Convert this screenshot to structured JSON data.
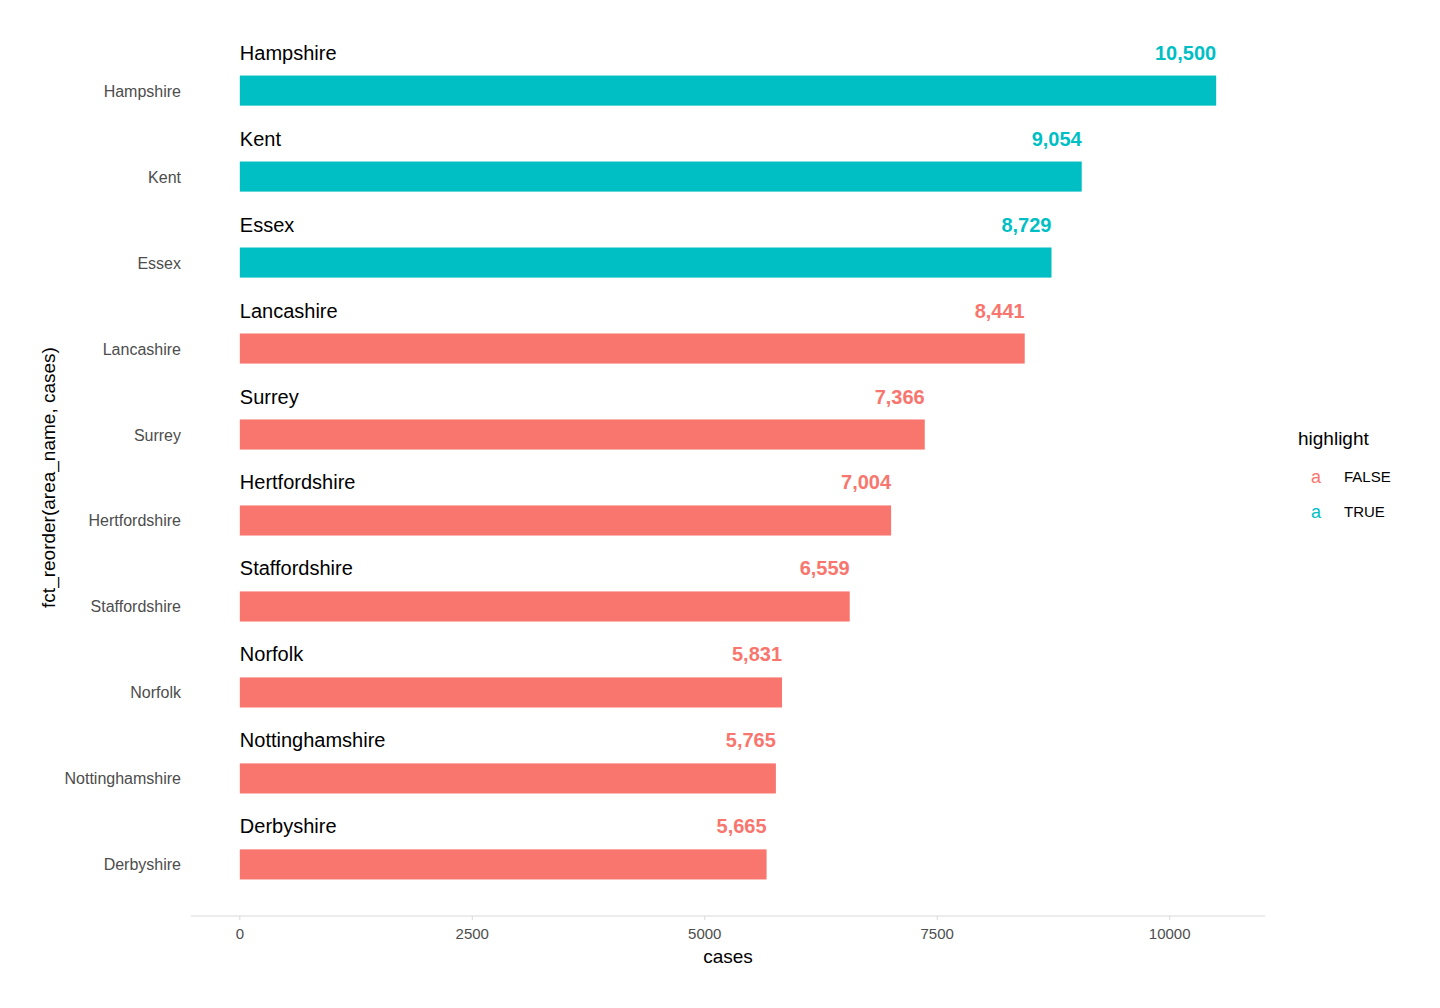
{
  "chart_data": {
    "type": "bar",
    "orientation": "horizontal",
    "x_label": "cases",
    "y_label": "fct_reorder(area_name, cases)",
    "categories": [
      "Hampshire",
      "Kent",
      "Essex",
      "Lancashire",
      "Surrey",
      "Hertfordshire",
      "Staffordshire",
      "Norfolk",
      "Nottinghamshire",
      "Derbyshire"
    ],
    "series": [
      {
        "name": "FALSE",
        "color": "#F8766D",
        "values": [
          null,
          null,
          null,
          8441,
          7366,
          7004,
          6559,
          5831,
          5765,
          5665
        ],
        "value_labels": [
          null,
          null,
          null,
          "8,441",
          "7,366",
          "7,004",
          "6,559",
          "5,831",
          "5,765",
          "5,665"
        ]
      },
      {
        "name": "TRUE",
        "color": "#00BFC4",
        "values": [
          10500,
          9054,
          8729,
          null,
          null,
          null,
          null,
          null,
          null,
          null
        ],
        "value_labels": [
          "10,500",
          "9,054",
          "8,729",
          null,
          null,
          null,
          null,
          null,
          null,
          null
        ]
      }
    ],
    "xlim": [
      -525,
      11025
    ],
    "xticks": [
      0,
      2500,
      5000,
      7500,
      10000
    ],
    "data_labels": true,
    "grid": false,
    "legend": "right",
    "legend_title": "highlight",
    "legend_key": "a"
  }
}
